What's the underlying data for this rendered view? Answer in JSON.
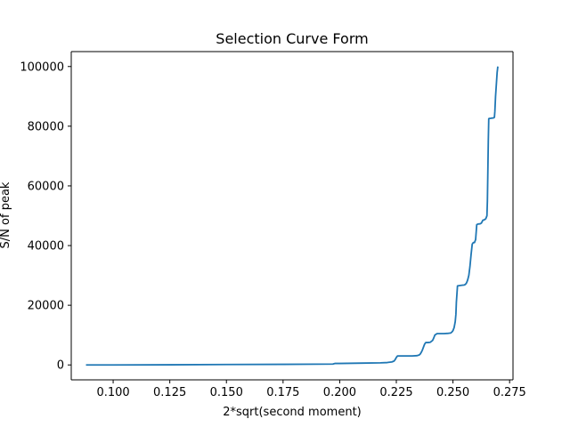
{
  "chart_data": {
    "type": "line",
    "title": "Selection Curve Form",
    "xlabel": "2*sqrt(second moment)",
    "ylabel": "S/N of peak",
    "xlim": [
      0.0815,
      0.2765
    ],
    "ylim": [
      -5000,
      105000
    ],
    "xticks": [
      0.1,
      0.125,
      0.15,
      0.175,
      0.2,
      0.225,
      0.25,
      0.275
    ],
    "xtick_labels": [
      "0.100",
      "0.125",
      "0.150",
      "0.175",
      "0.200",
      "0.225",
      "0.250",
      "0.275"
    ],
    "yticks": [
      0,
      20000,
      40000,
      60000,
      80000,
      100000
    ],
    "ytick_labels": [
      "0",
      "20000",
      "40000",
      "60000",
      "80000",
      "100000"
    ],
    "grid": false,
    "series_color": "#1f77b4",
    "series": [
      {
        "x": [
          0.088,
          0.1,
          0.125,
          0.15,
          0.175,
          0.19,
          0.197,
          0.198,
          0.2,
          0.21,
          0.218,
          0.221,
          0.223,
          0.224,
          0.2245,
          0.225,
          0.2255,
          0.226,
          0.228,
          0.232,
          0.234,
          0.235,
          0.2355,
          0.236,
          0.2365,
          0.237,
          0.2375,
          0.238,
          0.239,
          0.24,
          0.241,
          0.2415,
          0.242,
          0.243,
          0.246,
          0.248,
          0.249,
          0.2495,
          0.25,
          0.2505,
          0.251,
          0.2513,
          0.2515,
          0.252,
          0.254,
          0.255,
          0.2555,
          0.256,
          0.2565,
          0.257,
          0.2575,
          0.258,
          0.2585,
          0.259,
          0.2595,
          0.26,
          0.2605,
          0.261,
          0.262,
          0.2625,
          0.263,
          0.2632,
          0.2634,
          0.2636,
          0.264,
          0.2645,
          0.265,
          0.2652,
          0.2654,
          0.2656,
          0.2658,
          0.266,
          0.2665,
          0.267,
          0.268,
          0.2683,
          0.2685,
          0.2688,
          0.2695,
          0.2698
        ],
        "y": [
          0,
          0,
          50,
          150,
          200,
          250,
          300,
          500,
          500,
          600,
          700,
          800,
          1000,
          1300,
          1800,
          2500,
          3000,
          3000,
          3000,
          3000,
          3100,
          3300,
          3600,
          4200,
          5000,
          6000,
          7000,
          7500,
          7500,
          7600,
          8200,
          9000,
          10000,
          10500,
          10500,
          10600,
          10700,
          11000,
          11500,
          12500,
          14500,
          17000,
          21000,
          26500,
          26700,
          26800,
          27000,
          27500,
          28500,
          30000,
          33000,
          37000,
          40500,
          41000,
          41000,
          42000,
          47000,
          47200,
          47300,
          47500,
          48200,
          48500,
          48500,
          48600,
          48700,
          49000,
          50000,
          55000,
          65000,
          75000,
          82500,
          82600,
          82600,
          82700,
          82800,
          83000,
          85000,
          90000,
          98000,
          100000
        ]
      }
    ]
  }
}
